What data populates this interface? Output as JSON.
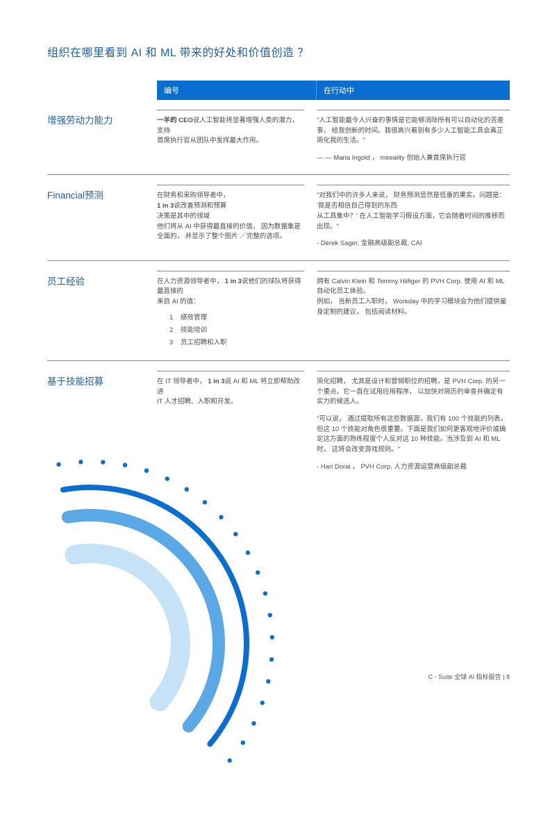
{
  "title": "组织在哪里看到 AI 和 ML 带来的好处和价值创造 ？",
  "headers": {
    "col1": "编号",
    "col2": "在行动中"
  },
  "rows": [
    {
      "label": "增强劳动力能力",
      "mid_bold": "一半的 CEO",
      "mid_rest": "说人工智能将显著增强人类的潜力， 支持\n首席执行官从团队中发挥最大作用。",
      "right_quote": "\"人工智能最令人兴奋的事情是它能够消除所有可以自动化的苦差事， 给我创新的时间。我很高兴看到有多少人工智能工具会真正简化我的生活。\"",
      "right_attr": "— — Maria Ingold ， mireality 创始人兼首席执行官"
    },
    {
      "label": "Financial预测",
      "mid_pre": "在财务和采购领导者中，",
      "mid_bold": "1 in 3",
      "mid_rest": "说改善预测和预算\n决策是其中的领域\n他们将从 AI 中获得最直接的价值，  因为数据集是全面的， 并显示了整个图片 ／完整的选项。",
      "right_quote": "\"对我们中的许多人来说， 财务预测显然是低垂的果实。问题是： '我是否相信自己得到的东西\n从工具集中？' 在人工智能学习假设方面，它会随着时间的推移而出现。\"",
      "right_attr": "- Derek Sager,  金融高级副总裁, CAI"
    },
    {
      "label": "员工经验",
      "mid_pre": "在人力资源领导者中，",
      "mid_bold": "1 in 3",
      "mid_rest": "说他们的球队将获得最直接的\n来自 AI 的值：",
      "list": [
        "绩效管理",
        "技能培训",
        "员工招聘和入职"
      ],
      "right_quote": "拥有 Calvin Klein 和 Tommy Hilfiger 的 PVH Corp. 使用 AI 和 ML\n自动化员工体验。\n例如， 当新员工入职时，  Workday 中的学习模块会为他们提供量身定制的建议， 包括阅读材料。"
    },
    {
      "label": "基于技能招募",
      "mid_pre": "在 IT 领导者中，",
      "mid_bold": "1 in 3",
      "mid_rest": "说 AI 和 ML 将立即帮助改进\nIT 人才招聘、入职和开发。",
      "right_quote": "简化招聘， 尤其是设计和营销职位的招聘，是 PVH Corp. 的另一个重点。它一直在试用应用程序， 以加快对简历的审查并确定有实力的候选人。",
      "right_quote2": "\"可以说， 通过提取所有这些数据源，我们有 100 个技能的列表。但这 10 个技能对角色很重要。下面是我们如何更客观地评价或确定这方面的熟练程度个人反对这 10 种技能。当涉及到 AI 和 ML时， 这将会改变游戏规则。\"",
      "right_attr": "- Hari Dorai ， PVH Corp. 人力资源运营高级副总裁"
    }
  ],
  "footer": "C - Suite 全球 AI 指标报告 | 8",
  "arcs": {
    "outer_arc_color": "#0a6ed1",
    "outer_arc_stroke": 8,
    "mid_arc_color": "#5aa9e6",
    "mid_arc_stroke": 18,
    "inner_arc_color": "#c6e2f7",
    "inner_arc_stroke": 28,
    "dot_color": "#0a6ed1",
    "dot_radius": 3.2,
    "background": "#ffffff"
  }
}
